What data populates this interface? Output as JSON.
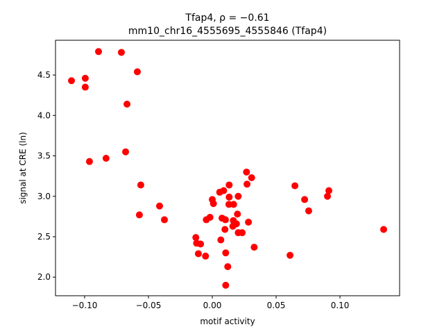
{
  "chart_data": {
    "type": "scatter",
    "title_line1": "Tfap4, ρ = −0.61",
    "title_line2": "mm10_chr16_4555695_4555846 (Tfap4)",
    "xlabel": "motif activity",
    "ylabel": "signal at CRE (ln)",
    "xlim": [
      -0.1228,
      0.1467
    ],
    "ylim": [
      1.77,
      4.93
    ],
    "xticks": [
      -0.1,
      -0.05,
      0.0,
      0.05,
      0.1
    ],
    "xtick_labels": [
      "−0.10",
      "−0.05",
      "0.00",
      "0.05",
      "0.10"
    ],
    "yticks": [
      2.0,
      2.5,
      3.0,
      3.5,
      4.0,
      4.5
    ],
    "ytick_labels": [
      "2.0",
      "2.5",
      "3.0",
      "3.5",
      "4.0",
      "4.5"
    ],
    "grid": false,
    "marker_color": "#ff0000",
    "points": [
      [
        -0.1103,
        4.43
      ],
      [
        -0.0995,
        4.46
      ],
      [
        -0.0995,
        4.35
      ],
      [
        -0.0891,
        4.79
      ],
      [
        -0.0712,
        4.78
      ],
      [
        -0.0587,
        4.54
      ],
      [
        -0.0668,
        4.14
      ],
      [
        -0.0679,
        3.55
      ],
      [
        -0.0962,
        3.43
      ],
      [
        -0.0832,
        3.47
      ],
      [
        -0.056,
        3.14
      ],
      [
        -0.0571,
        2.77
      ],
      [
        -0.0413,
        2.88
      ],
      [
        -0.0375,
        2.71
      ],
      [
        0.0647,
        3.13
      ],
      [
        0.0723,
        2.96
      ],
      [
        0.0755,
        2.82
      ],
      [
        0.0913,
        3.07
      ],
      [
        0.0902,
        3.0
      ],
      [
        0.0609,
        2.27
      ],
      [
        0.1342,
        2.59
      ],
      [
        0.0268,
        3.3
      ],
      [
        0.0308,
        3.23
      ],
      [
        0.0272,
        3.15
      ],
      [
        0.0132,
        3.14
      ],
      [
        0.0089,
        3.07
      ],
      [
        0.0058,
        3.05
      ],
      [
        0.0132,
        2.99
      ],
      [
        0.0203,
        3.0
      ],
      [
        0.0,
        2.96
      ],
      [
        0.0009,
        2.91
      ],
      [
        0.013,
        2.9
      ],
      [
        0.0167,
        2.9
      ],
      [
        0.0197,
        2.78
      ],
      [
        -0.0047,
        2.71
      ],
      [
        -0.0018,
        2.74
      ],
      [
        0.0076,
        2.73
      ],
      [
        0.0103,
        2.71
      ],
      [
        0.0165,
        2.7
      ],
      [
        0.0189,
        2.66
      ],
      [
        0.0161,
        2.63
      ],
      [
        0.0283,
        2.68
      ],
      [
        0.0099,
        2.59
      ],
      [
        0.0203,
        2.55
      ],
      [
        0.0234,
        2.55
      ],
      [
        -0.0129,
        2.49
      ],
      [
        0.0067,
        2.46
      ],
      [
        -0.0123,
        2.42
      ],
      [
        -0.0092,
        2.41
      ],
      [
        0.0328,
        2.37
      ],
      [
        -0.0109,
        2.29
      ],
      [
        -0.0053,
        2.26
      ],
      [
        0.0105,
        2.3
      ],
      [
        0.0121,
        2.13
      ],
      [
        0.0105,
        1.9
      ]
    ]
  }
}
